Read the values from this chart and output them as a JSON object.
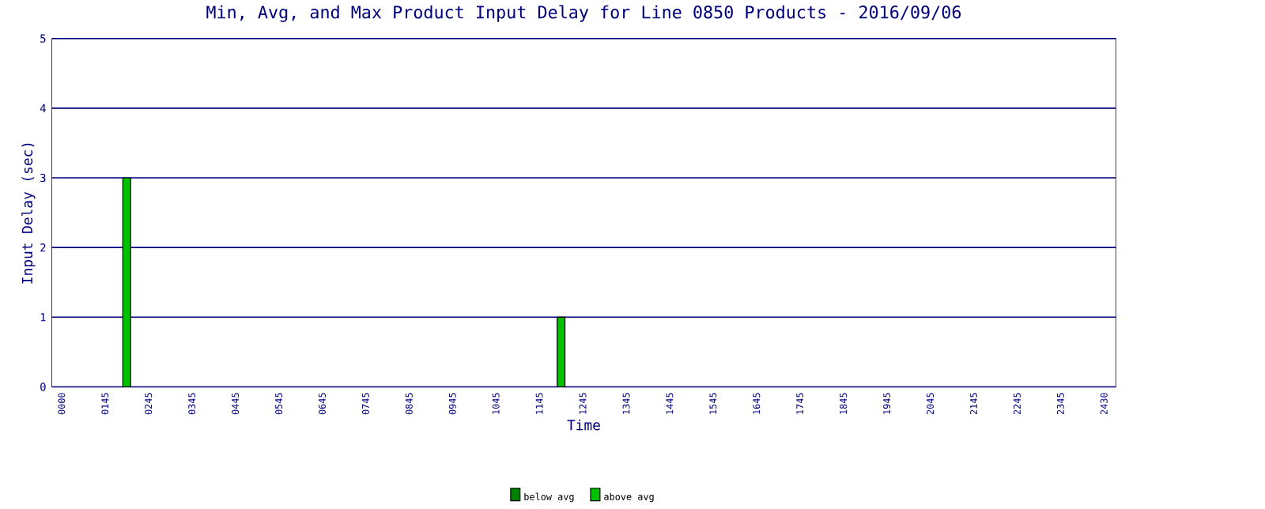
{
  "chart_data": {
    "type": "bar",
    "title": "Min, Avg, and Max Product Input Delay for Line 0850 Products - 2016/09/06",
    "xlabel": "Time",
    "ylabel": "Input Delay (sec)",
    "categories": [
      "0000",
      null,
      "0145",
      null,
      "0245",
      null,
      "0345",
      null,
      "0445",
      null,
      "0545",
      null,
      "0645",
      null,
      "0745",
      null,
      "0845",
      null,
      "0945",
      null,
      "1045",
      null,
      "1145",
      null,
      "1245",
      null,
      "1345",
      null,
      "1445",
      null,
      "1545",
      null,
      "1645",
      null,
      "1745",
      null,
      "1845",
      null,
      "1945",
      null,
      "2045",
      null,
      "2145",
      null,
      "2245",
      null,
      "2345",
      null,
      "2430"
    ],
    "series": [
      {
        "name": "below avg",
        "color": "#008000",
        "values": [
          null,
          null,
          null,
          0,
          null,
          null,
          null,
          null,
          null,
          null,
          null,
          null,
          null,
          null,
          null,
          null,
          null,
          null,
          null,
          null,
          null,
          null,
          null,
          0,
          null,
          null,
          null,
          null,
          null,
          null,
          null,
          null,
          null,
          null,
          null,
          null,
          null,
          null,
          null,
          null,
          null,
          null,
          null,
          null,
          null,
          null,
          null,
          null,
          null
        ]
      },
      {
        "name": "above avg",
        "color": "#00c000",
        "values": [
          null,
          null,
          null,
          3,
          null,
          null,
          null,
          null,
          null,
          null,
          null,
          null,
          null,
          null,
          null,
          null,
          null,
          null,
          null,
          null,
          null,
          null,
          null,
          1,
          null,
          null,
          null,
          null,
          null,
          null,
          null,
          null,
          null,
          null,
          null,
          null,
          null,
          null,
          null,
          null,
          null,
          null,
          null,
          null,
          null,
          null,
          null,
          null,
          null
        ]
      }
    ],
    "stacked": true,
    "ylim": [
      0,
      5
    ],
    "yticks": [
      0,
      1,
      2,
      3,
      4,
      5
    ],
    "grid": "y",
    "legend": "bottom"
  }
}
